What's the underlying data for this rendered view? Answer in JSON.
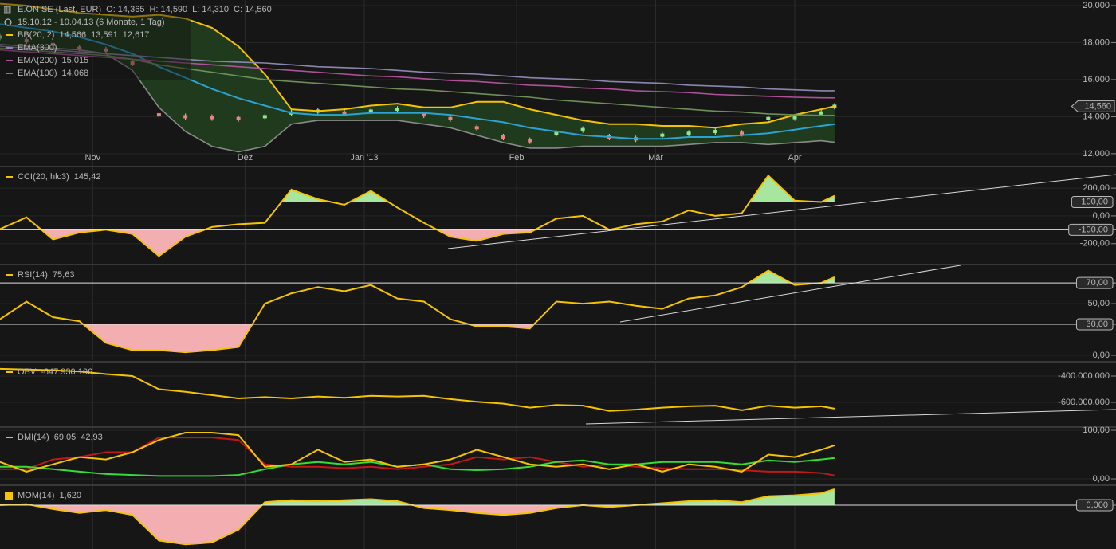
{
  "chart_data": [
    {
      "type": "candle-line",
      "title": "E.ON SE (Last, EUR)",
      "ohlc_labels": [
        "O: 14,365",
        "H: 14,590",
        "L: 14,310",
        "C: 14,560"
      ],
      "period": "15.10.12 - 10.04.13 (6 Monate, 1 Tag)",
      "legend": [
        {
          "text": "BB(20; 2)",
          "color": "#f5c400",
          "values": [
            "14,566",
            "13,591",
            "12,617"
          ],
          "value_colors": [
            "#f5c400",
            "#2aa3d4",
            "#9a9a9a"
          ]
        },
        {
          "text": "EMA(300)",
          "color": "#8b86b0",
          "values": [],
          "value_colors": []
        },
        {
          "text": "EMA(200)",
          "color": "#b0509a",
          "values": [
            "15,015"
          ],
          "value_colors": [
            "#b0509a"
          ]
        },
        {
          "text": "EMA(100)",
          "color": "#6f8f5a",
          "values": [
            "14,068"
          ],
          "value_colors": [
            "#8fbf6a"
          ]
        }
      ],
      "last": {
        "value": 14.56,
        "label": "14,560"
      },
      "x": [
        0,
        4,
        8,
        12,
        16,
        20,
        24,
        28,
        32,
        36,
        40,
        44,
        48,
        52,
        56,
        60,
        64,
        68,
        72,
        76,
        80,
        84,
        88,
        92,
        96,
        100,
        104,
        108,
        112,
        116,
        120,
        124,
        126
      ],
      "xlim": [
        0,
        168.5
      ],
      "xticks": [
        {
          "value": 14,
          "label": "Nov"
        },
        {
          "value": 37,
          "label": "Dez"
        },
        {
          "value": 55,
          "label": "Jan '13"
        },
        {
          "value": 78,
          "label": "Feb"
        },
        {
          "value": 99,
          "label": "Mär"
        },
        {
          "value": 120,
          "label": "Apr"
        }
      ],
      "ylim": [
        11.35,
        20.3
      ],
      "yticks": [
        {
          "value": 12,
          "label": "12,000"
        },
        {
          "value": 14,
          "label": "14,000"
        },
        {
          "value": 16,
          "label": "16,000"
        },
        {
          "value": 18,
          "label": "18,000"
        },
        {
          "value": 20,
          "label": "20,000"
        }
      ],
      "band_fill": "#1f3a1c",
      "up_color": "#8ee88e",
      "down_color": "#f08080",
      "series": [
        {
          "role": "close",
          "values": [
            18.3,
            18.1,
            17.9,
            17.7,
            17.6,
            16.9,
            14.1,
            14.0,
            13.95,
            13.9,
            14.0,
            14.2,
            14.3,
            14.2,
            14.3,
            14.4,
            14.1,
            13.9,
            13.4,
            12.9,
            12.7,
            13.1,
            13.3,
            12.9,
            12.8,
            13.0,
            13.1,
            13.2,
            13.1,
            13.9,
            13.95,
            14.2,
            14.56
          ]
        },
        {
          "role": "upper",
          "color": "#f5c400",
          "values": [
            20.1,
            20.0,
            19.8,
            19.6,
            19.5,
            19.4,
            19.5,
            19.3,
            18.8,
            17.8,
            16.3,
            14.4,
            14.3,
            14.4,
            14.6,
            14.7,
            14.5,
            14.5,
            14.8,
            14.8,
            14.4,
            14.1,
            13.8,
            13.6,
            13.6,
            13.5,
            13.5,
            13.4,
            13.6,
            13.7,
            14.1,
            14.4,
            14.566
          ]
        },
        {
          "role": "middle",
          "color": "#2aa3d4",
          "values": [
            19.0,
            18.8,
            18.6,
            18.3,
            17.9,
            17.4,
            16.7,
            16.1,
            15.5,
            15.0,
            14.6,
            14.2,
            14.1,
            14.1,
            14.2,
            14.2,
            14.2,
            14.1,
            13.9,
            13.7,
            13.4,
            13.2,
            13.0,
            12.9,
            12.8,
            12.8,
            12.9,
            12.9,
            13.0,
            13.1,
            13.3,
            13.5,
            13.591
          ]
        },
        {
          "role": "lower",
          "color": "#8a8a8a",
          "values": [
            17.9,
            17.8,
            17.7,
            17.6,
            17.4,
            16.5,
            14.5,
            13.2,
            12.4,
            12.1,
            12.4,
            13.6,
            13.8,
            13.8,
            13.8,
            13.8,
            13.6,
            13.4,
            13.0,
            12.6,
            12.3,
            12.3,
            12.4,
            12.4,
            12.4,
            12.4,
            12.5,
            12.6,
            12.6,
            12.5,
            12.6,
            12.7,
            12.617
          ]
        },
        {
          "role": "line",
          "color": "#8b86b0",
          "values": [
            17.8,
            17.7,
            17.6,
            17.5,
            17.4,
            17.3,
            17.2,
            17.1,
            17.0,
            16.95,
            16.9,
            16.8,
            16.7,
            16.65,
            16.6,
            16.5,
            16.4,
            16.35,
            16.3,
            16.2,
            16.1,
            16.05,
            16.0,
            15.9,
            15.85,
            15.8,
            15.7,
            15.65,
            15.6,
            15.5,
            15.45,
            15.4,
            15.4
          ]
        },
        {
          "role": "line",
          "color": "#b0509a",
          "values": [
            17.6,
            17.5,
            17.4,
            17.3,
            17.2,
            17.1,
            17.0,
            16.9,
            16.8,
            16.7,
            16.6,
            16.5,
            16.4,
            16.3,
            16.2,
            16.15,
            16.05,
            15.95,
            15.9,
            15.8,
            15.7,
            15.65,
            15.55,
            15.5,
            15.4,
            15.35,
            15.3,
            15.2,
            15.15,
            15.1,
            15.05,
            15.02,
            15.015
          ]
        },
        {
          "role": "line",
          "color": "#6f8f5a",
          "values": [
            17.7,
            17.6,
            17.5,
            17.4,
            17.3,
            17.1,
            16.8,
            16.6,
            16.4,
            16.2,
            16.0,
            15.9,
            15.8,
            15.7,
            15.6,
            15.5,
            15.45,
            15.35,
            15.25,
            15.15,
            15.05,
            14.9,
            14.8,
            14.7,
            14.6,
            14.5,
            14.4,
            14.3,
            14.25,
            14.15,
            14.1,
            14.07,
            14.068
          ]
        }
      ]
    },
    {
      "type": "line",
      "title": "CCI(20, hlc3)",
      "value_label": "145,42",
      "marker": "dash",
      "x": [
        0,
        4,
        8,
        12,
        16,
        20,
        24,
        28,
        32,
        36,
        40,
        44,
        48,
        52,
        56,
        60,
        64,
        68,
        72,
        76,
        80,
        84,
        88,
        92,
        96,
        100,
        104,
        108,
        112,
        116,
        120,
        124,
        126
      ],
      "ylim": [
        -345,
        350
      ],
      "yticks": [
        {
          "value": -200,
          "label": "-200,00"
        },
        {
          "value": -100,
          "label": "-100,00"
        },
        {
          "value": 0,
          "label": "0,00"
        },
        {
          "value": 100,
          "label": "100,00"
        },
        {
          "value": 200,
          "label": "200,00"
        }
      ],
      "levels": [
        100,
        -100
      ],
      "fill": true,
      "series": [
        {
          "color": "#f5c400",
          "values": [
            -95,
            -10,
            -170,
            -120,
            -100,
            -130,
            -290,
            -150,
            -80,
            -60,
            -50,
            190,
            120,
            80,
            180,
            60,
            -50,
            -150,
            -180,
            -130,
            -120,
            -20,
            0,
            -100,
            -60,
            -40,
            40,
            0,
            20,
            290,
            110,
            100,
            145.42
          ]
        }
      ]
    },
    {
      "type": "line",
      "title": "RSI(14)",
      "value_label": "75,63",
      "marker": "dash",
      "x": [
        0,
        4,
        8,
        12,
        16,
        20,
        24,
        28,
        32,
        36,
        40,
        44,
        48,
        52,
        56,
        60,
        64,
        68,
        72,
        76,
        80,
        84,
        88,
        92,
        96,
        100,
        104,
        108,
        112,
        116,
        120,
        124,
        126
      ],
      "ylim": [
        -4.6,
        87
      ],
      "yticks": [
        {
          "value": 0,
          "label": "0,00"
        },
        {
          "value": 30,
          "label": "30,00"
        },
        {
          "value": 50,
          "label": "50,00"
        },
        {
          "value": 70,
          "label": "70,00"
        }
      ],
      "levels": [
        70,
        30
      ],
      "fill": true,
      "series": [
        {
          "color": "#f5c400",
          "values": [
            35,
            52,
            37,
            33,
            12,
            5,
            5,
            3,
            5,
            8,
            50,
            60,
            66,
            62,
            68,
            55,
            52,
            35,
            28,
            28,
            26,
            52,
            50,
            52,
            48,
            45,
            55,
            58,
            66,
            82,
            68,
            70,
            75.63
          ]
        }
      ]
    },
    {
      "type": "line",
      "title": "OBV",
      "value_label": "-647.930.106",
      "marker": "dash",
      "x": [
        0,
        4,
        8,
        12,
        16,
        20,
        24,
        28,
        32,
        36,
        40,
        44,
        48,
        52,
        56,
        60,
        64,
        68,
        72,
        76,
        80,
        84,
        88,
        92,
        96,
        100,
        104,
        108,
        112,
        116,
        120,
        124,
        126
      ],
      "ylim": [
        -782000000,
        -297000000
      ],
      "yticks": [
        {
          "value": -600000000,
          "label": "-600.000.000"
        },
        {
          "value": -400000000,
          "label": "-400.000.000"
        }
      ],
      "levels": [],
      "fill": false,
      "series": [
        {
          "color": "#f5c400",
          "values": [
            -345000000,
            -350000000,
            -355000000,
            -365000000,
            -385000000,
            -400000000,
            -500000000,
            -520000000,
            -545000000,
            -570000000,
            -560000000,
            -570000000,
            -555000000,
            -565000000,
            -550000000,
            -555000000,
            -550000000,
            -575000000,
            -595000000,
            -610000000,
            -640000000,
            -620000000,
            -625000000,
            -665000000,
            -655000000,
            -640000000,
            -630000000,
            -625000000,
            -660000000,
            -625000000,
            -640000000,
            -630000000,
            -647930106
          ]
        }
      ]
    },
    {
      "type": "line",
      "title": "DMI(14)",
      "value_labels": [
        "69,05",
        "42,93"
      ],
      "value_colors": [
        "#f5c400",
        "#33dd33"
      ],
      "marker": "dash",
      "x": [
        0,
        4,
        8,
        12,
        16,
        20,
        24,
        28,
        32,
        36,
        40,
        44,
        48,
        52,
        56,
        60,
        64,
        68,
        72,
        76,
        80,
        84,
        88,
        92,
        96,
        100,
        104,
        108,
        112,
        116,
        120,
        124,
        126
      ],
      "ylim": [
        -9.8,
        104.9
      ],
      "yticks": [
        {
          "value": 0,
          "label": "0,00"
        },
        {
          "value": 100,
          "label": "100,00"
        }
      ],
      "levels": [],
      "fill": false,
      "series": [
        {
          "color": "#c01818",
          "values": [
            20,
            20,
            40,
            45,
            55,
            55,
            85,
            85,
            85,
            80,
            30,
            25,
            25,
            22,
            25,
            20,
            25,
            30,
            45,
            40,
            45,
            35,
            25,
            30,
            25,
            22,
            20,
            20,
            18,
            15,
            15,
            12,
            7
          ]
        },
        {
          "color": "#33dd33",
          "values": [
            25,
            25,
            20,
            15,
            10,
            8,
            6,
            6,
            6,
            8,
            20,
            30,
            35,
            30,
            35,
            25,
            30,
            20,
            18,
            20,
            25,
            35,
            38,
            30,
            30,
            35,
            35,
            35,
            30,
            38,
            35,
            40,
            42.93
          ]
        },
        {
          "color": "#f5c400",
          "values": [
            35,
            15,
            30,
            45,
            40,
            55,
            80,
            95,
            95,
            90,
            25,
            30,
            60,
            35,
            40,
            25,
            30,
            40,
            60,
            45,
            30,
            25,
            30,
            20,
            30,
            15,
            30,
            25,
            15,
            50,
            45,
            60,
            69.05
          ]
        }
      ]
    },
    {
      "type": "line",
      "title": "MOM(14)",
      "value_label": "1,620",
      "marker": "square",
      "x": [
        0,
        4,
        8,
        12,
        16,
        20,
        24,
        28,
        32,
        36,
        40,
        44,
        48,
        52,
        56,
        60,
        64,
        68,
        72,
        76,
        80,
        84,
        88,
        92,
        96,
        100,
        104,
        108,
        112,
        116,
        120,
        124,
        126
      ],
      "ylim": [
        -4.46,
        1.94
      ],
      "yticks": [
        {
          "value": 0,
          "label": "0,000"
        }
      ],
      "levels": [
        0
      ],
      "fill": true,
      "series": [
        {
          "color": "#f5c400",
          "values": [
            0,
            0.1,
            -0.4,
            -0.8,
            -0.5,
            -1.0,
            -3.6,
            -4.0,
            -3.8,
            -2.5,
            0.3,
            0.5,
            0.4,
            0.5,
            0.6,
            0.4,
            -0.3,
            -0.5,
            -0.8,
            -1.0,
            -0.8,
            -0.3,
            0.0,
            -0.2,
            0.0,
            0.2,
            0.4,
            0.5,
            0.3,
            0.9,
            1.0,
            1.2,
            1.62
          ]
        }
      ]
    }
  ]
}
